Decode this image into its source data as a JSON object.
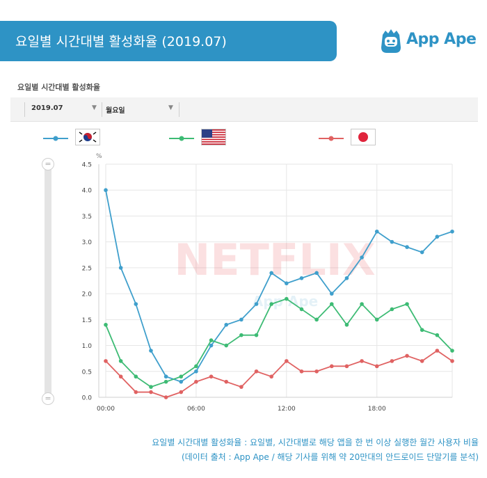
{
  "banner": {
    "title": "요일별 시간대별 활성화율 (2019.07)"
  },
  "logo": {
    "text": "App Ape"
  },
  "section_title": "요일별 시간대별 활성화율",
  "filters": {
    "month": "2019.07",
    "day": "월요일"
  },
  "legend": {
    "series": [
      {
        "flag": "south-korea-flag-icon",
        "color": "#3f9fcc"
      },
      {
        "flag": "usa-flag-icon",
        "color": "#3dbb74"
      },
      {
        "flag": "japan-flag-icon",
        "color": "#e06262"
      }
    ]
  },
  "watermarks": {
    "brand": "NETFLIX",
    "app": "App Ape"
  },
  "chart_data": {
    "type": "line",
    "ylabel": "%",
    "ylim": [
      0,
      4.5
    ],
    "yticks": [
      "0.0",
      "0.5",
      "1.0",
      "1.5",
      "2.0",
      "2.5",
      "3.0",
      "3.5",
      "4.0",
      "4.5"
    ],
    "x": [
      0,
      1,
      2,
      3,
      4,
      5,
      6,
      7,
      8,
      9,
      10,
      11,
      12,
      13,
      14,
      15,
      16,
      17,
      18,
      19,
      20,
      21,
      22,
      23
    ],
    "xtick_labels": [
      "00:00",
      "06:00",
      "12:00",
      "18:00"
    ],
    "xtick_positions": [
      0,
      6,
      12,
      18
    ],
    "grid": true,
    "series": [
      {
        "color": "#3f9fcc",
        "values": [
          4.0,
          2.5,
          1.8,
          0.9,
          0.4,
          0.3,
          0.5,
          1.0,
          1.4,
          1.5,
          1.8,
          2.4,
          2.2,
          2.3,
          2.4,
          2.0,
          2.3,
          2.7,
          3.2,
          3.0,
          2.9,
          2.8,
          3.1,
          3.2
        ]
      },
      {
        "color": "#3dbb74",
        "values": [
          1.4,
          0.7,
          0.4,
          0.2,
          0.3,
          0.4,
          0.6,
          1.1,
          1.0,
          1.2,
          1.2,
          1.8,
          1.9,
          1.7,
          1.5,
          1.8,
          1.4,
          1.8,
          1.5,
          1.7,
          1.8,
          1.3,
          1.2,
          0.9
        ]
      },
      {
        "color": "#e06262",
        "values": [
          0.7,
          0.4,
          0.1,
          0.1,
          0.0,
          0.1,
          0.3,
          0.4,
          0.3,
          0.2,
          0.5,
          0.4,
          0.7,
          0.5,
          0.5,
          0.6,
          0.6,
          0.7,
          0.6,
          0.7,
          0.8,
          0.7,
          0.9,
          0.7
        ]
      }
    ]
  },
  "footnotes": [
    "요일별 시간대별 활성화율 : 요일별, 시간대별로 해당 앱을 한 번 이상 실행한 월간 사용자 비율",
    "(데이터 출처 : App Ape / 해당 기사를 위해 약 20만대의 안드로이드 단말기를 분석)"
  ]
}
